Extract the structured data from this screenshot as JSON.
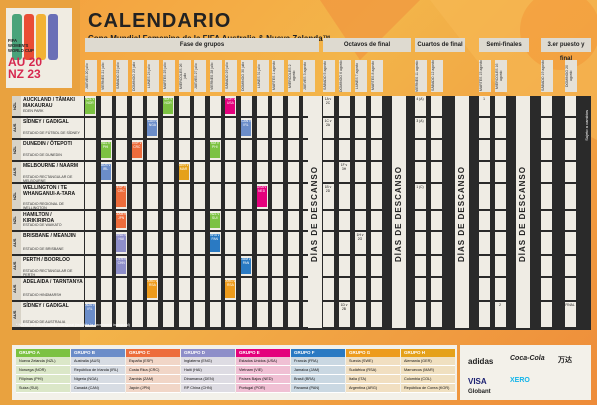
{
  "header": {
    "title": "CALENDARIO",
    "subtitle": "Copa Mundial Femenina de la FIFA Australia & Nueva Zelanda™"
  },
  "logo": {
    "text_lines": [
      "FIFA",
      "WOMEN'S",
      "WORLD CUP",
      "AU 20",
      "NZ 23"
    ],
    "icon": "trophy-logo-icon"
  },
  "stages": [
    {
      "label": "Fase de grupos"
    },
    {
      "label": "Octavos de final"
    },
    {
      "label": "Cuartos de final"
    },
    {
      "label": "Semi-finales"
    },
    {
      "label": "3.er puesto y final"
    }
  ],
  "dates": [
    "JUEVES 20 julio",
    "VIERNES 21 julio",
    "SÁBADO 22 julio",
    "DOMINGO 23 julio",
    "LUNES 24 julio",
    "MARTES 25 julio",
    "MIÉRCOLES 26 julio",
    "JUEVES 27 julio",
    "VIERNES 28 julio",
    "SÁBADO 29 julio",
    "DOMINGO 30 julio",
    "LUNES 31 julio",
    "MARTES 1 agosto",
    "MIÉRCOLES 2 agosto",
    "JUEVES 3 agosto",
    "SÁBADO 5 agosto",
    "DOMINGO 6 agosto",
    "LUNES 7 agosto",
    "MARTES 8 agosto",
    "VIERNES 11 agosto",
    "SÁBADO 12 agosto",
    "MARTES 15 agosto",
    "MIÉRCOLES 16 agosto",
    "SÁBADO 19 agosto",
    "DOMINGO 20 agosto"
  ],
  "venues": [
    {
      "country": "NZL",
      "name": "AUCKLAND / TĀMAKI MAKAURAU",
      "stadium": "EDEN PARK"
    },
    {
      "country": "AUS",
      "name": "SÍDNEY / GADIGAL",
      "stadium": "ESTADIO DE FÚTBOL DE SÍDNEY"
    },
    {
      "country": "NZL",
      "name": "DUNEDIN / ŌTEPOTI",
      "stadium": "ESTADIO DE DUNEDIN"
    },
    {
      "country": "AUS",
      "name": "MELBOURNE / NAARM",
      "stadium": "ESTADIO RECTANGULAR DE MELBOURNE"
    },
    {
      "country": "NZL",
      "name": "WELLINGTON / TE WHANGANUI-A-TARA",
      "stadium": "ESTADIO REGIONAL DE WELLINGTON"
    },
    {
      "country": "NZL",
      "name": "HAMILTON / KIRIKIRIROA",
      "stadium": "ESTADIO DE WAIKATO"
    },
    {
      "country": "AUS",
      "name": "BRISBANE / MEANJIN",
      "stadium": "ESTADIO DE BRISBANE"
    },
    {
      "country": "AUS",
      "name": "PERTH / BOORLOO",
      "stadium": "ESTADIO RECTANGULAR DE PERTH"
    },
    {
      "country": "AUS",
      "name": "ADELAIDA / TARNTANYA",
      "stadium": "ESTADIO HINDMARSH"
    },
    {
      "country": "AUS",
      "name": "SÍDNEY / GADIGAL",
      "stadium": "ESTADIO DE AUSTRALIA"
    }
  ],
  "matches": [
    {
      "venue": 0,
      "col": 0,
      "text": "NZL v NOR",
      "color": "#7cc242"
    },
    {
      "venue": 0,
      "col": 5,
      "text": "SUI v NOR",
      "color": "#7cc242"
    },
    {
      "venue": 0,
      "col": 9,
      "text": "POR v USA",
      "color": "#e4007c"
    },
    {
      "venue": 0,
      "col": 15,
      "text": "1A v 2C",
      "color": "#efece4"
    },
    {
      "venue": 0,
      "col": 19,
      "text": "4 (A)",
      "color": "#efece4"
    },
    {
      "venue": 0,
      "col": 21,
      "text": "1",
      "color": "#efece4"
    },
    {
      "venue": 1,
      "col": 4,
      "text": "CAN v NGA",
      "color": "#6b8dc9"
    },
    {
      "venue": 1,
      "col": 10,
      "text": "CAN v IRL",
      "color": "#6b8dc9"
    },
    {
      "venue": 1,
      "col": 15,
      "text": "1C v 2A",
      "color": "#efece4"
    },
    {
      "venue": 1,
      "col": 19,
      "text": "3 (A)",
      "color": "#efece4"
    },
    {
      "venue": 2,
      "col": 1,
      "text": "NZL v PHI",
      "color": "#7cc242"
    },
    {
      "venue": 2,
      "col": 3,
      "text": "ESP v CRC",
      "color": "#ed6c3b"
    },
    {
      "venue": 2,
      "col": 8,
      "text": "SUI v PHI",
      "color": "#7cc242"
    },
    {
      "venue": 3,
      "col": 1,
      "text": "AUS v IRL",
      "color": "#6b8dc9"
    },
    {
      "venue": 3,
      "col": 6,
      "text": "GER v MAR",
      "color": "#e5a11a"
    },
    {
      "venue": 3,
      "col": 16,
      "text": "1F v 3H",
      "color": "#efece4"
    },
    {
      "venue": 4,
      "col": 2,
      "text": "ESP v CRC",
      "color": "#ed6c3b"
    },
    {
      "venue": 4,
      "col": 11,
      "text": "USA v NED",
      "color": "#e4007c"
    },
    {
      "venue": 4,
      "col": 15,
      "text": "1B v 2D",
      "color": "#efece4"
    },
    {
      "venue": 4,
      "col": 19,
      "text": "1 (C)",
      "color": "#efece4"
    },
    {
      "venue": 5,
      "col": 2,
      "text": "ZAM v JPN",
      "color": "#ed6c3b"
    },
    {
      "venue": 5,
      "col": 8,
      "text": "NZL v SUI",
      "color": "#7cc242"
    },
    {
      "venue": 6,
      "col": 2,
      "text": "ENG v HAI",
      "color": "#8e8ec9"
    },
    {
      "venue": 6,
      "col": 8,
      "text": "BRA v PAN",
      "color": "#2a7ac3"
    },
    {
      "venue": 6,
      "col": 17,
      "text": "1H v 2G",
      "color": "#efece4"
    },
    {
      "venue": 7,
      "col": 2,
      "text": "DEN v CHN",
      "color": "#8e8ec9"
    },
    {
      "venue": 7,
      "col": 10,
      "text": "JAM v PAN",
      "color": "#2a7ac3"
    },
    {
      "venue": 8,
      "col": 4,
      "text": "ARG v RSA",
      "color": "#ed9b1c"
    },
    {
      "venue": 8,
      "col": 9,
      "text": "ARG v RSA",
      "color": "#ed9b1c"
    },
    {
      "venue": 9,
      "col": 0,
      "text": "AUS v IRL",
      "color": "#6b8dc9"
    },
    {
      "venue": 9,
      "col": 16,
      "text": "1D v 2B",
      "color": "#efece4"
    },
    {
      "venue": 9,
      "col": 22,
      "text": "2",
      "color": "#efece4"
    },
    {
      "venue": 9,
      "col": 24,
      "text": "FINAL",
      "color": "#efece4"
    }
  ],
  "rest_labels": [
    "DÍAS DE DESCANSO",
    "DÍAS DE DESCANSO",
    "DÍAS DE DESCANSO",
    "DÍAS DE DESCANSO",
    "DÍAS DE DESCANSO"
  ],
  "note": "* NOTA: P1 es el partido inaugural (incluida la ceremonia inaugural)",
  "side_text": "Sujeto a cambios",
  "groups": [
    {
      "label": "GRUPO A",
      "color": "#7cc242",
      "teams": [
        "Nueva Zelanda (NZL)",
        "Noruega (NOR)",
        "Filipinas (PHI)",
        "Suiza (SUI)"
      ]
    },
    {
      "label": "GRUPO B",
      "color": "#6b8dc9",
      "teams": [
        "Australia (AUS)",
        "República de Irlanda (IRL)",
        "Nigeria (NGA)",
        "Canadá (CAN)"
      ]
    },
    {
      "label": "GRUPO C",
      "color": "#ed6c3b",
      "teams": [
        "España (ESP)",
        "Costa Rica (CRC)",
        "Zambia (ZAM)",
        "Japón (JPN)"
      ]
    },
    {
      "label": "GRUPO D",
      "color": "#8e8ec9",
      "teams": [
        "Inglaterra (ENG)",
        "Haití (HAI)",
        "Dinamarca (DEN)",
        "RP China (CHN)"
      ]
    },
    {
      "label": "GRUPO E",
      "color": "#e4007c",
      "teams": [
        "Estados Unidos (USA)",
        "Vietnam (VIE)",
        "Países Bajos (NED)",
        "Portugal (POR)"
      ]
    },
    {
      "label": "GRUPO F",
      "color": "#2a7ac3",
      "teams": [
        "Francia (FRA)",
        "Jamaica (JAM)",
        "Brasil (BRA)",
        "Panamá (PAN)"
      ]
    },
    {
      "label": "GRUPO G",
      "color": "#ed9b1c",
      "teams": [
        "Suecia (SWE)",
        "Sudáfrica (RSA)",
        "Italia (ITA)",
        "Argentina (ARG)"
      ]
    },
    {
      "label": "GRUPO H",
      "color": "#e5a11a",
      "teams": [
        "Alemania (GER)",
        "Marruecos (MAR)",
        "Colombia (COL)",
        "República de Corea (KOR)"
      ]
    }
  ],
  "sponsors": {
    "adidas": "adidas",
    "cocacola": "Coca-Cola",
    "wanda": "万达",
    "visa": "VISA",
    "xero": "XERO",
    "globant": "Globant"
  }
}
